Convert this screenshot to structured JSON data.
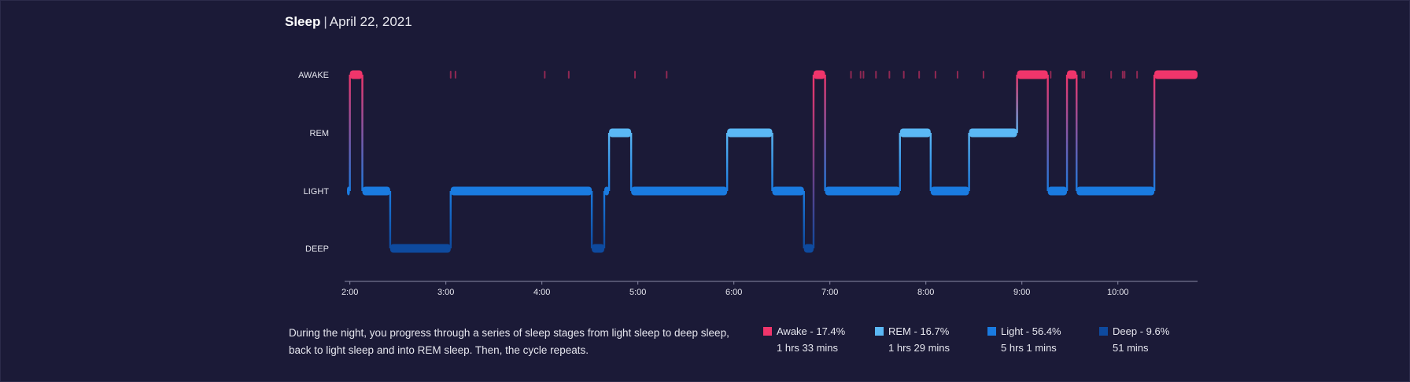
{
  "header": {
    "title": "Sleep",
    "separator": "|",
    "date": "April 22, 2021"
  },
  "colors": {
    "background": "#1b1a37",
    "awake": "#f0356b",
    "rem": "#5bb8f5",
    "light": "#1a7be0",
    "deep": "#0e4a9e"
  },
  "description": "During the night, you progress through a series of sleep stages from light sleep to deep sleep, back to light sleep and into REM sleep. Then, the cycle repeats.",
  "legend": [
    {
      "label": "Awake - 17.4%",
      "duration": "1 hrs 33 mins",
      "color_key": "awake"
    },
    {
      "label": "REM - 16.7%",
      "duration": "1 hrs 29 mins",
      "color_key": "rem"
    },
    {
      "label": "Light - 56.4%",
      "duration": "5 hrs 1 mins",
      "color_key": "light"
    },
    {
      "label": "Deep - 9.6%",
      "duration": "51 mins",
      "color_key": "deep"
    }
  ],
  "chart_data": {
    "type": "area",
    "title": "Sleep",
    "subtitle": "April 22, 2021",
    "y_categories": [
      "AWAKE",
      "REM",
      "LIGHT",
      "DEEP"
    ],
    "x_tick_labels": [
      "2:00",
      "3:00",
      "4:00",
      "5:00",
      "6:00",
      "7:00",
      "8:00",
      "9:00",
      "10:00"
    ],
    "x_unit": "hours since midnight",
    "xlim": [
      1.97,
      10.83
    ],
    "grid": false,
    "segments": [
      {
        "stage": "LIGHT",
        "start": 1.97,
        "end": 2.0
      },
      {
        "stage": "AWAKE",
        "start": 2.0,
        "end": 2.13
      },
      {
        "stage": "LIGHT",
        "start": 2.13,
        "end": 2.42
      },
      {
        "stage": "DEEP",
        "start": 2.42,
        "end": 3.05
      },
      {
        "stage": "LIGHT",
        "start": 3.05,
        "end": 4.52
      },
      {
        "stage": "DEEP",
        "start": 4.52,
        "end": 4.65
      },
      {
        "stage": "LIGHT",
        "start": 4.65,
        "end": 4.7
      },
      {
        "stage": "REM",
        "start": 4.7,
        "end": 4.93
      },
      {
        "stage": "LIGHT",
        "start": 4.93,
        "end": 5.93
      },
      {
        "stage": "REM",
        "start": 5.93,
        "end": 6.4
      },
      {
        "stage": "LIGHT",
        "start": 6.4,
        "end": 6.73
      },
      {
        "stage": "DEEP",
        "start": 6.73,
        "end": 6.83
      },
      {
        "stage": "AWAKE",
        "start": 6.83,
        "end": 6.95
      },
      {
        "stage": "LIGHT",
        "start": 6.95,
        "end": 7.73
      },
      {
        "stage": "REM",
        "start": 7.73,
        "end": 8.05
      },
      {
        "stage": "LIGHT",
        "start": 8.05,
        "end": 8.45
      },
      {
        "stage": "REM",
        "start": 8.45,
        "end": 8.95
      },
      {
        "stage": "AWAKE",
        "start": 8.95,
        "end": 9.27
      },
      {
        "stage": "LIGHT",
        "start": 9.27,
        "end": 9.47
      },
      {
        "stage": "AWAKE",
        "start": 9.47,
        "end": 9.57
      },
      {
        "stage": "LIGHT",
        "start": 9.57,
        "end": 10.38
      },
      {
        "stage": "AWAKE",
        "start": 10.38,
        "end": 10.83
      }
    ],
    "brief_awakenings": [
      3.05,
      3.1,
      4.03,
      4.28,
      4.97,
      5.3,
      7.22,
      7.32,
      7.35,
      7.48,
      7.62,
      7.77,
      7.93,
      8.1,
      8.33,
      8.6,
      9.3,
      9.63,
      9.65,
      9.93,
      10.05,
      10.07,
      10.2
    ]
  }
}
